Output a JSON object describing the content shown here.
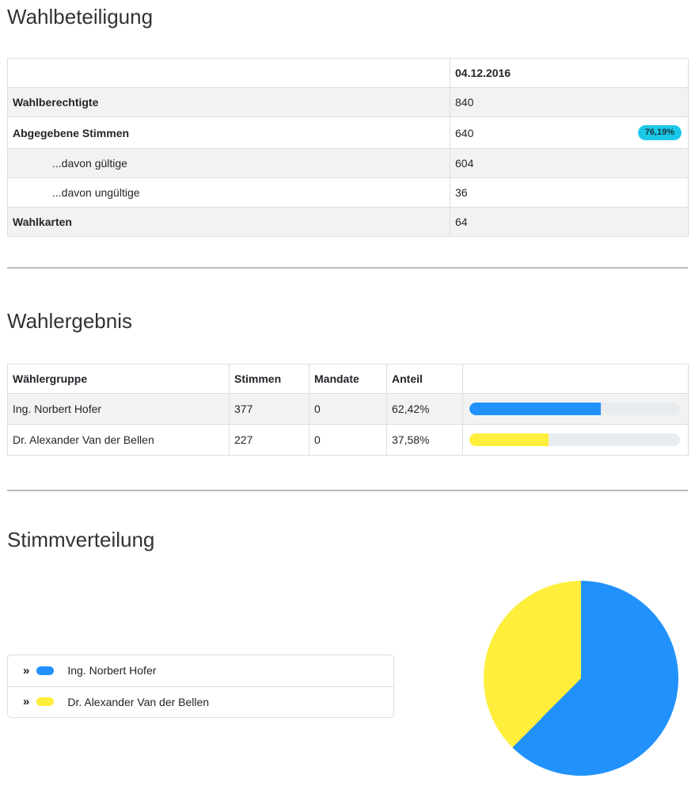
{
  "colors": {
    "hofer_blue": "#2192fc",
    "vdb_yellow": "#ffee3c",
    "badge_cyan": "#1cc8e8",
    "bar_track": "#e9ecef",
    "row_stripe": "#f2f2f2",
    "table_border": "#dddddd"
  },
  "page": {
    "turnout": {
      "title": "Wahlbeteiligung",
      "date_header": "04.12.2016",
      "rows": [
        {
          "label": "Wahlberechtigte",
          "value": "840"
        },
        {
          "label": "Abgegebene Stimmen",
          "value": "640",
          "badge": "76,19%"
        },
        {
          "label": "...davon gültige",
          "value": "604"
        },
        {
          "label": "...davon ungültige",
          "value": "36"
        },
        {
          "label": "Wahlkarten",
          "value": "64"
        }
      ]
    },
    "results": {
      "title": "Wahlergebnis",
      "columns": {
        "group": "Wählergruppe",
        "votes": "Stimmen",
        "mandates": "Mandate",
        "share": "Anteil"
      },
      "rows": [
        {
          "name": "Ing. Norbert Hofer",
          "votes": "377",
          "mandates": "0",
          "share": "62,42%",
          "share_pct": 62.42,
          "color": "#2192fc"
        },
        {
          "name": "Dr. Alexander Van der Bellen",
          "votes": "227",
          "mandates": "0",
          "share": "37,58%",
          "share_pct": 37.58,
          "color": "#ffee3c"
        }
      ]
    },
    "distribution": {
      "title": "Stimmverteilung",
      "legend": [
        {
          "label": "Ing. Norbert Hofer",
          "color": "#2192fc"
        },
        {
          "label": "Dr. Alexander Van der Bellen",
          "color": "#ffee3c"
        }
      ]
    }
  },
  "chart_data": [
    {
      "type": "table",
      "title": "Wahlbeteiligung",
      "columns": [
        "",
        "04.12.2016"
      ],
      "rows": [
        [
          "Wahlberechtigte",
          "840"
        ],
        [
          "Abgegebene Stimmen",
          "640 (76,19%)"
        ],
        [
          "...davon gültige",
          "604"
        ],
        [
          "...davon ungültige",
          "36"
        ],
        [
          "Wahlkarten",
          "64"
        ]
      ]
    },
    {
      "type": "bar",
      "title": "Wahlergebnis",
      "categories": [
        "Ing. Norbert Hofer",
        "Dr. Alexander Van der Bellen"
      ],
      "series": [
        {
          "name": "Stimmen",
          "values": [
            377,
            227
          ]
        },
        {
          "name": "Mandate",
          "values": [
            0,
            0
          ]
        },
        {
          "name": "Anteil (%)",
          "values": [
            62.42,
            37.58
          ]
        }
      ],
      "orientation": "horizontal",
      "xlim": [
        0,
        100
      ],
      "colors": [
        "#2192fc",
        "#ffee3c"
      ]
    },
    {
      "type": "pie",
      "title": "Stimmverteilung",
      "labels": [
        "Ing. Norbert Hofer",
        "Dr. Alexander Van der Bellen"
      ],
      "values": [
        62.42,
        37.58
      ],
      "colors": [
        "#2192fc",
        "#ffee3c"
      ],
      "start_angle_deg": 0,
      "direction": "clockwise",
      "legend_position": "left"
    }
  ]
}
